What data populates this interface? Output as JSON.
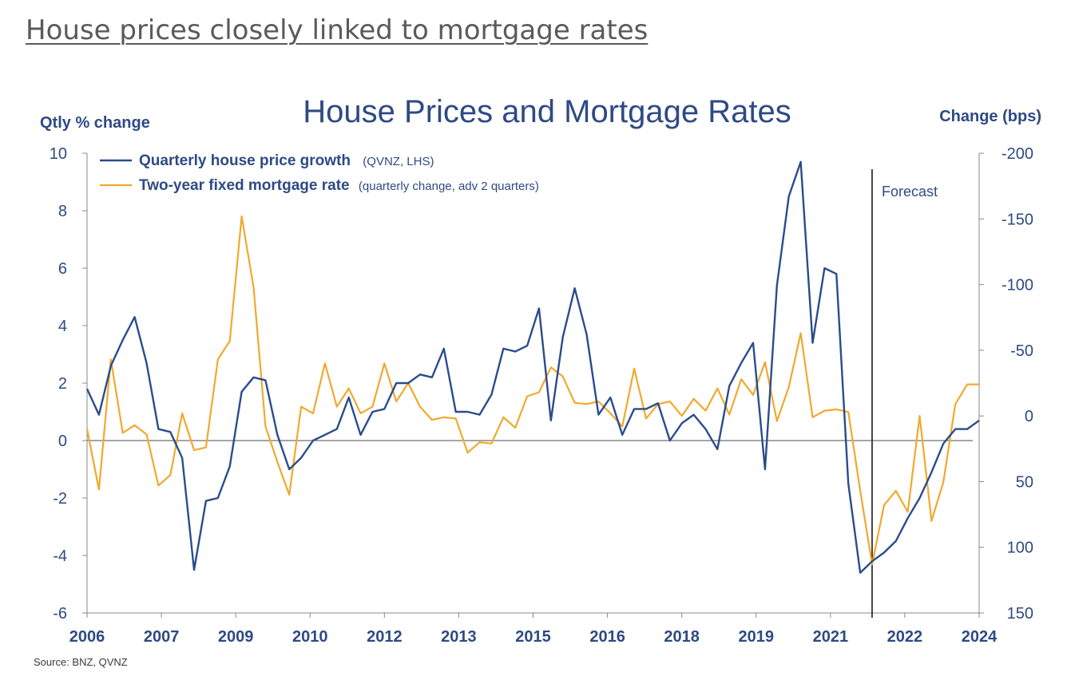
{
  "page": {
    "heading": "House prices closely linked to mortgage rates"
  },
  "colors": {
    "house_series": "#2b4c8c",
    "mortgage_series": "#f0a92e",
    "axis_text": "#2e4a84",
    "zero_line": "#707070"
  },
  "chart_data": {
    "type": "line",
    "title": "House Prices and Mortgage Rates",
    "ylabel_left": "Qtly % change",
    "ylabel_right": "Change (bps)",
    "ylim_left": [
      -6,
      10
    ],
    "ylim_right": [
      150,
      -200
    ],
    "yticks_left": [
      "10",
      "8",
      "6",
      "4",
      "2",
      "0",
      "-2",
      "-4",
      "-6"
    ],
    "yticks_right": [
      "-200",
      "-150",
      "-100",
      "-50",
      "0",
      "50",
      "100",
      "150"
    ],
    "xticks": [
      "2006",
      "2007",
      "2009",
      "2010",
      "2012",
      "2013",
      "2015",
      "2016",
      "2018",
      "2019",
      "2021",
      "2022",
      "2024"
    ],
    "legend": {
      "house_label": "Quarterly house price growth",
      "house_note": "(QVNZ, LHS)",
      "mortgage_label": "Two-year fixed mortgage rate",
      "mortgage_note": "(quarterly change, adv 2 quarters)"
    },
    "forecast_label": "Forecast",
    "forecast_start_index": 66,
    "source": "Source: BNZ, QVNZ",
    "series": [
      {
        "name": "Quarterly house price growth",
        "axis": "left",
        "values": [
          1.8,
          0.9,
          2.6,
          3.5,
          4.3,
          2.7,
          0.4,
          0.3,
          -0.6,
          -4.5,
          -2.1,
          -2.0,
          -0.9,
          1.7,
          2.2,
          2.1,
          0.2,
          -1.0,
          -0.6,
          0.0,
          0.2,
          0.4,
          1.5,
          0.2,
          1.0,
          1.1,
          2.0,
          2.0,
          2.3,
          2.2,
          3.2,
          1.0,
          1.0,
          0.9,
          1.6,
          3.2,
          3.1,
          3.3,
          4.6,
          0.7,
          3.6,
          5.3,
          3.7,
          0.9,
          1.5,
          0.2,
          1.1,
          1.1,
          1.3,
          0.0,
          0.6,
          0.9,
          0.4,
          -0.3,
          1.9,
          2.7,
          3.4,
          -1.0,
          5.4,
          8.5,
          9.7,
          3.4,
          6.0,
          5.8,
          -1.5,
          -4.6,
          -4.2,
          -3.9,
          -3.5,
          -2.7,
          -2.0,
          -1.1,
          -0.1,
          0.4,
          0.4,
          0.7
        ]
      },
      {
        "name": "Two-year fixed mortgage rate",
        "axis": "right",
        "values": [
          10,
          56,
          -43,
          13,
          7,
          14,
          53,
          45,
          -2,
          26,
          24,
          -43,
          -57,
          -152,
          -98,
          8,
          35,
          60,
          -7,
          -2,
          -40,
          -7,
          -21,
          -2,
          -7,
          -40,
          -11,
          -25,
          -7,
          3,
          1,
          2,
          28,
          20,
          21,
          1,
          9,
          -15,
          -18,
          -37,
          -30,
          -10,
          -9,
          -11,
          -2,
          8,
          -36,
          2,
          -9,
          -11,
          0,
          -13,
          -4,
          -21,
          -1,
          -28,
          -16,
          -41,
          4,
          -22,
          -63,
          1,
          -4,
          -5,
          -3,
          57,
          113,
          68,
          57,
          73,
          0,
          80,
          50,
          -9,
          -24,
          -24
        ]
      }
    ]
  }
}
